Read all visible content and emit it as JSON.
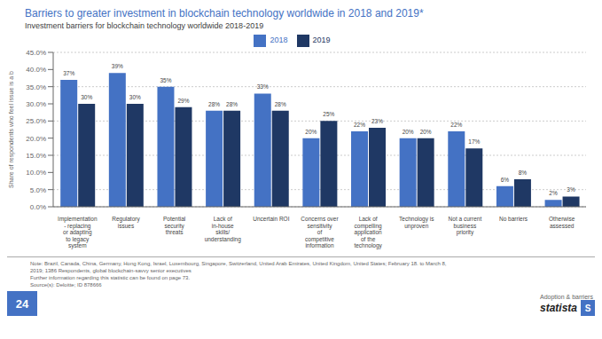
{
  "chart_data": {
    "type": "bar",
    "title": "Barriers to greater investment in blockchain technology worldwide in 2018 and 2019*",
    "subtitle": "Investment barriers for blockchain technology worldwide 2018-2019",
    "ylabel": "Share of respondents who feel issue is a b",
    "categories": [
      "Implementation - replacing or adapting to legacy system",
      "Regulatory issues",
      "Potential security threats",
      "Lack of in-house skills/understanding",
      "Uncertain ROI",
      "Concerns over sensitivity of competitive information",
      "Lack of compelling application of the technology",
      "Technology is unproven",
      "Not a current business priority",
      "No barriers",
      "Otherwise assessed"
    ],
    "series": [
      {
        "name": "2018",
        "color": "#4472C4",
        "values": [
          37,
          39,
          35,
          28,
          33,
          20,
          22,
          20,
          22,
          6,
          2
        ],
        "value_labels": [
          "37%",
          "39%",
          "35%",
          "28%",
          "33%",
          "20%",
          "22%",
          "20%",
          "22%",
          "6%",
          "2%"
        ]
      },
      {
        "name": "2019",
        "color": "#1F3864",
        "values": [
          30,
          30,
          29,
          28,
          28,
          25,
          23,
          20,
          17,
          8,
          3
        ],
        "value_labels": [
          "30%",
          "30%",
          "29%",
          "28%",
          "28%",
          "25%",
          "23%",
          "20%",
          "17%",
          "8%",
          "3%"
        ]
      }
    ],
    "ylim": [
      0,
      45
    ],
    "yticks": [
      {
        "value": 0,
        "label": "0.0%"
      },
      {
        "value": 5,
        "label": "5.0%"
      },
      {
        "value": 10,
        "label": "10.0%"
      },
      {
        "value": 15,
        "label": "15.0%"
      },
      {
        "value": 20,
        "label": "20.0%"
      },
      {
        "value": 25,
        "label": "25.0%"
      },
      {
        "value": 30,
        "label": "30.0%"
      },
      {
        "value": 35,
        "label": "35.0%"
      },
      {
        "value": 40,
        "label": "40.0%"
      },
      {
        "value": 45,
        "label": "45.0%"
      }
    ],
    "grid": true,
    "legend": "top",
    "data_labels": true,
    "annotations": [
      "Note:  Brazil, Canada, China, Germany, Hong Kong, Israel, Luxembourg, Singapore, Switzerland, United Arab Emirates, United Kingdom, United States; February 18. to March 8,\n2019; 1386 Respondents, global blockchain-savvy senior executives\nFurther information regarding this statistic can be found on page 73.\nSource(s): Deloitte; ID 878666",
      "24",
      "Adoption & barriers",
      "statista",
      "S"
    ]
  }
}
